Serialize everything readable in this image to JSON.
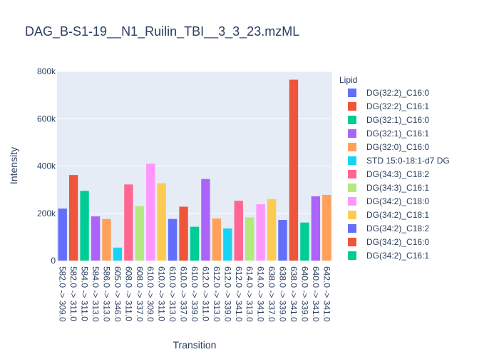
{
  "chart_data": {
    "type": "bar",
    "title": "DAG_B-S1-19__N1_Ruilin_TBI__3_3_23.mzML",
    "xlabel": "Transition",
    "ylabel": "Intensity",
    "ylim": [
      0,
      800000
    ],
    "yticks": [
      0,
      200000,
      400000,
      600000,
      800000
    ],
    "ytick_labels": [
      "0",
      "200k",
      "400k",
      "600k",
      "800k"
    ],
    "grid": true,
    "legend_title": "Lipid",
    "legend_position": "right",
    "legend": [
      {
        "name": "DG(32:2)_C16:0",
        "color": "#636efa"
      },
      {
        "name": "DG(32:2)_C16:1",
        "color": "#EF553B"
      },
      {
        "name": "DG(32:1)_C16:0",
        "color": "#00cc96"
      },
      {
        "name": "DG(32:1)_C16:1",
        "color": "#ab63fa"
      },
      {
        "name": "DG(32:0)_C16:0",
        "color": "#FFA15A"
      },
      {
        "name": "STD 15:0-18:1-d7 DG",
        "color": "#19d3f3"
      },
      {
        "name": "DG(34:3)_C18:2",
        "color": "#FF6692"
      },
      {
        "name": "DG(34:3)_C16:1",
        "color": "#B6E880"
      },
      {
        "name": "DG(34:2)_C18:0",
        "color": "#FF97FF"
      },
      {
        "name": "DG(34:2)_C18:1",
        "color": "#FECB52"
      },
      {
        "name": "DG(34:2)_C18:2",
        "color": "#636efa"
      },
      {
        "name": "DG(34:2)_C16:0",
        "color": "#EF553B"
      },
      {
        "name": "DG(34:2)_C16:1",
        "color": "#00cc96"
      }
    ],
    "categories": [
      "582.0 -> 309.0",
      "582.0 -> 311.0",
      "584.0 -> 311.0",
      "584.0 -> 313.0",
      "586.0 -> 313.0",
      "605.0 -> 346.0",
      "608.0 -> 311.0",
      "608.0 -> 337.0",
      "610.0 -> 309.0",
      "610.0 -> 311.0",
      "610.0 -> 313.0",
      "610.0 -> 337.0",
      "610.0 -> 339.0",
      "612.0 -> 311.0",
      "612.0 -> 313.0",
      "612.0 -> 339.0",
      "612.0 -> 341.0",
      "614.0 -> 313.0",
      "614.0 -> 341.0",
      "638.0 -> 337.0",
      "638.0 -> 339.0",
      "638.0 -> 341.0",
      "640.0 -> 339.0",
      "640.0 -> 341.0",
      "642.0 -> 341.0"
    ],
    "values": [
      220000,
      362000,
      295000,
      187000,
      176000,
      55000,
      322000,
      230000,
      410000,
      327000,
      176000,
      228000,
      143000,
      345000,
      178000,
      136000,
      253000,
      183000,
      238000,
      260000,
      172000,
      765000,
      161000,
      272000,
      278000
    ],
    "bar_colors": [
      "#636efa",
      "#EF553B",
      "#00cc96",
      "#ab63fa",
      "#FFA15A",
      "#19d3f3",
      "#FF6692",
      "#B6E880",
      "#FF97FF",
      "#FECB52",
      "#636efa",
      "#EF553B",
      "#00cc96",
      "#ab63fa",
      "#FFA15A",
      "#19d3f3",
      "#FF6692",
      "#B6E880",
      "#FF97FF",
      "#FECB52",
      "#636efa",
      "#EF553B",
      "#00cc96",
      "#ab63fa",
      "#FFA15A"
    ],
    "plot_bg": "#E5ECF6",
    "grid_color": "#ffffff"
  }
}
